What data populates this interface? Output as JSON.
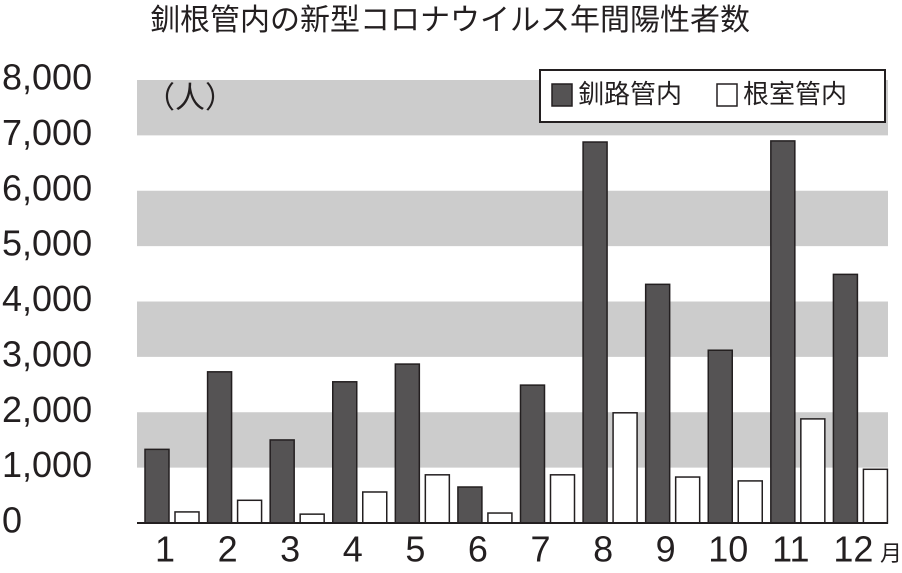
{
  "chart_data": {
    "type": "bar",
    "title": "釧根管内の新型コロナウイルス年間陽性者数",
    "unit_label": "（人）",
    "x_unit_label": "月",
    "categories": [
      "1",
      "2",
      "3",
      "4",
      "5",
      "6",
      "7",
      "8",
      "9",
      "10",
      "11",
      "12"
    ],
    "series": [
      {
        "name": "釧路管内",
        "color": "#555354",
        "values": [
          1330,
          2730,
          1500,
          2550,
          2870,
          650,
          2490,
          6880,
          4310,
          3120,
          6900,
          4490
        ]
      },
      {
        "name": "根室管内",
        "color": "#ffffff",
        "values": [
          200,
          410,
          160,
          560,
          870,
          180,
          870,
          1990,
          830,
          760,
          1880,
          970
        ]
      }
    ],
    "ylim": [
      0,
      8000
    ],
    "yticks": [
      0,
      {
        "value": 1000,
        "label": "1,000"
      },
      {
        "value": 2000,
        "label": "2,000"
      },
      {
        "value": 3000,
        "label": "3,000"
      },
      {
        "value": 4000,
        "label": "4,000"
      },
      {
        "value": 5000,
        "label": "5,000"
      },
      {
        "value": 6000,
        "label": "6,000"
      },
      {
        "value": 7000,
        "label": "7,000"
      },
      {
        "value": 8000,
        "label": "8,000"
      }
    ],
    "grid_bands": true,
    "legend_position": "upper right"
  }
}
